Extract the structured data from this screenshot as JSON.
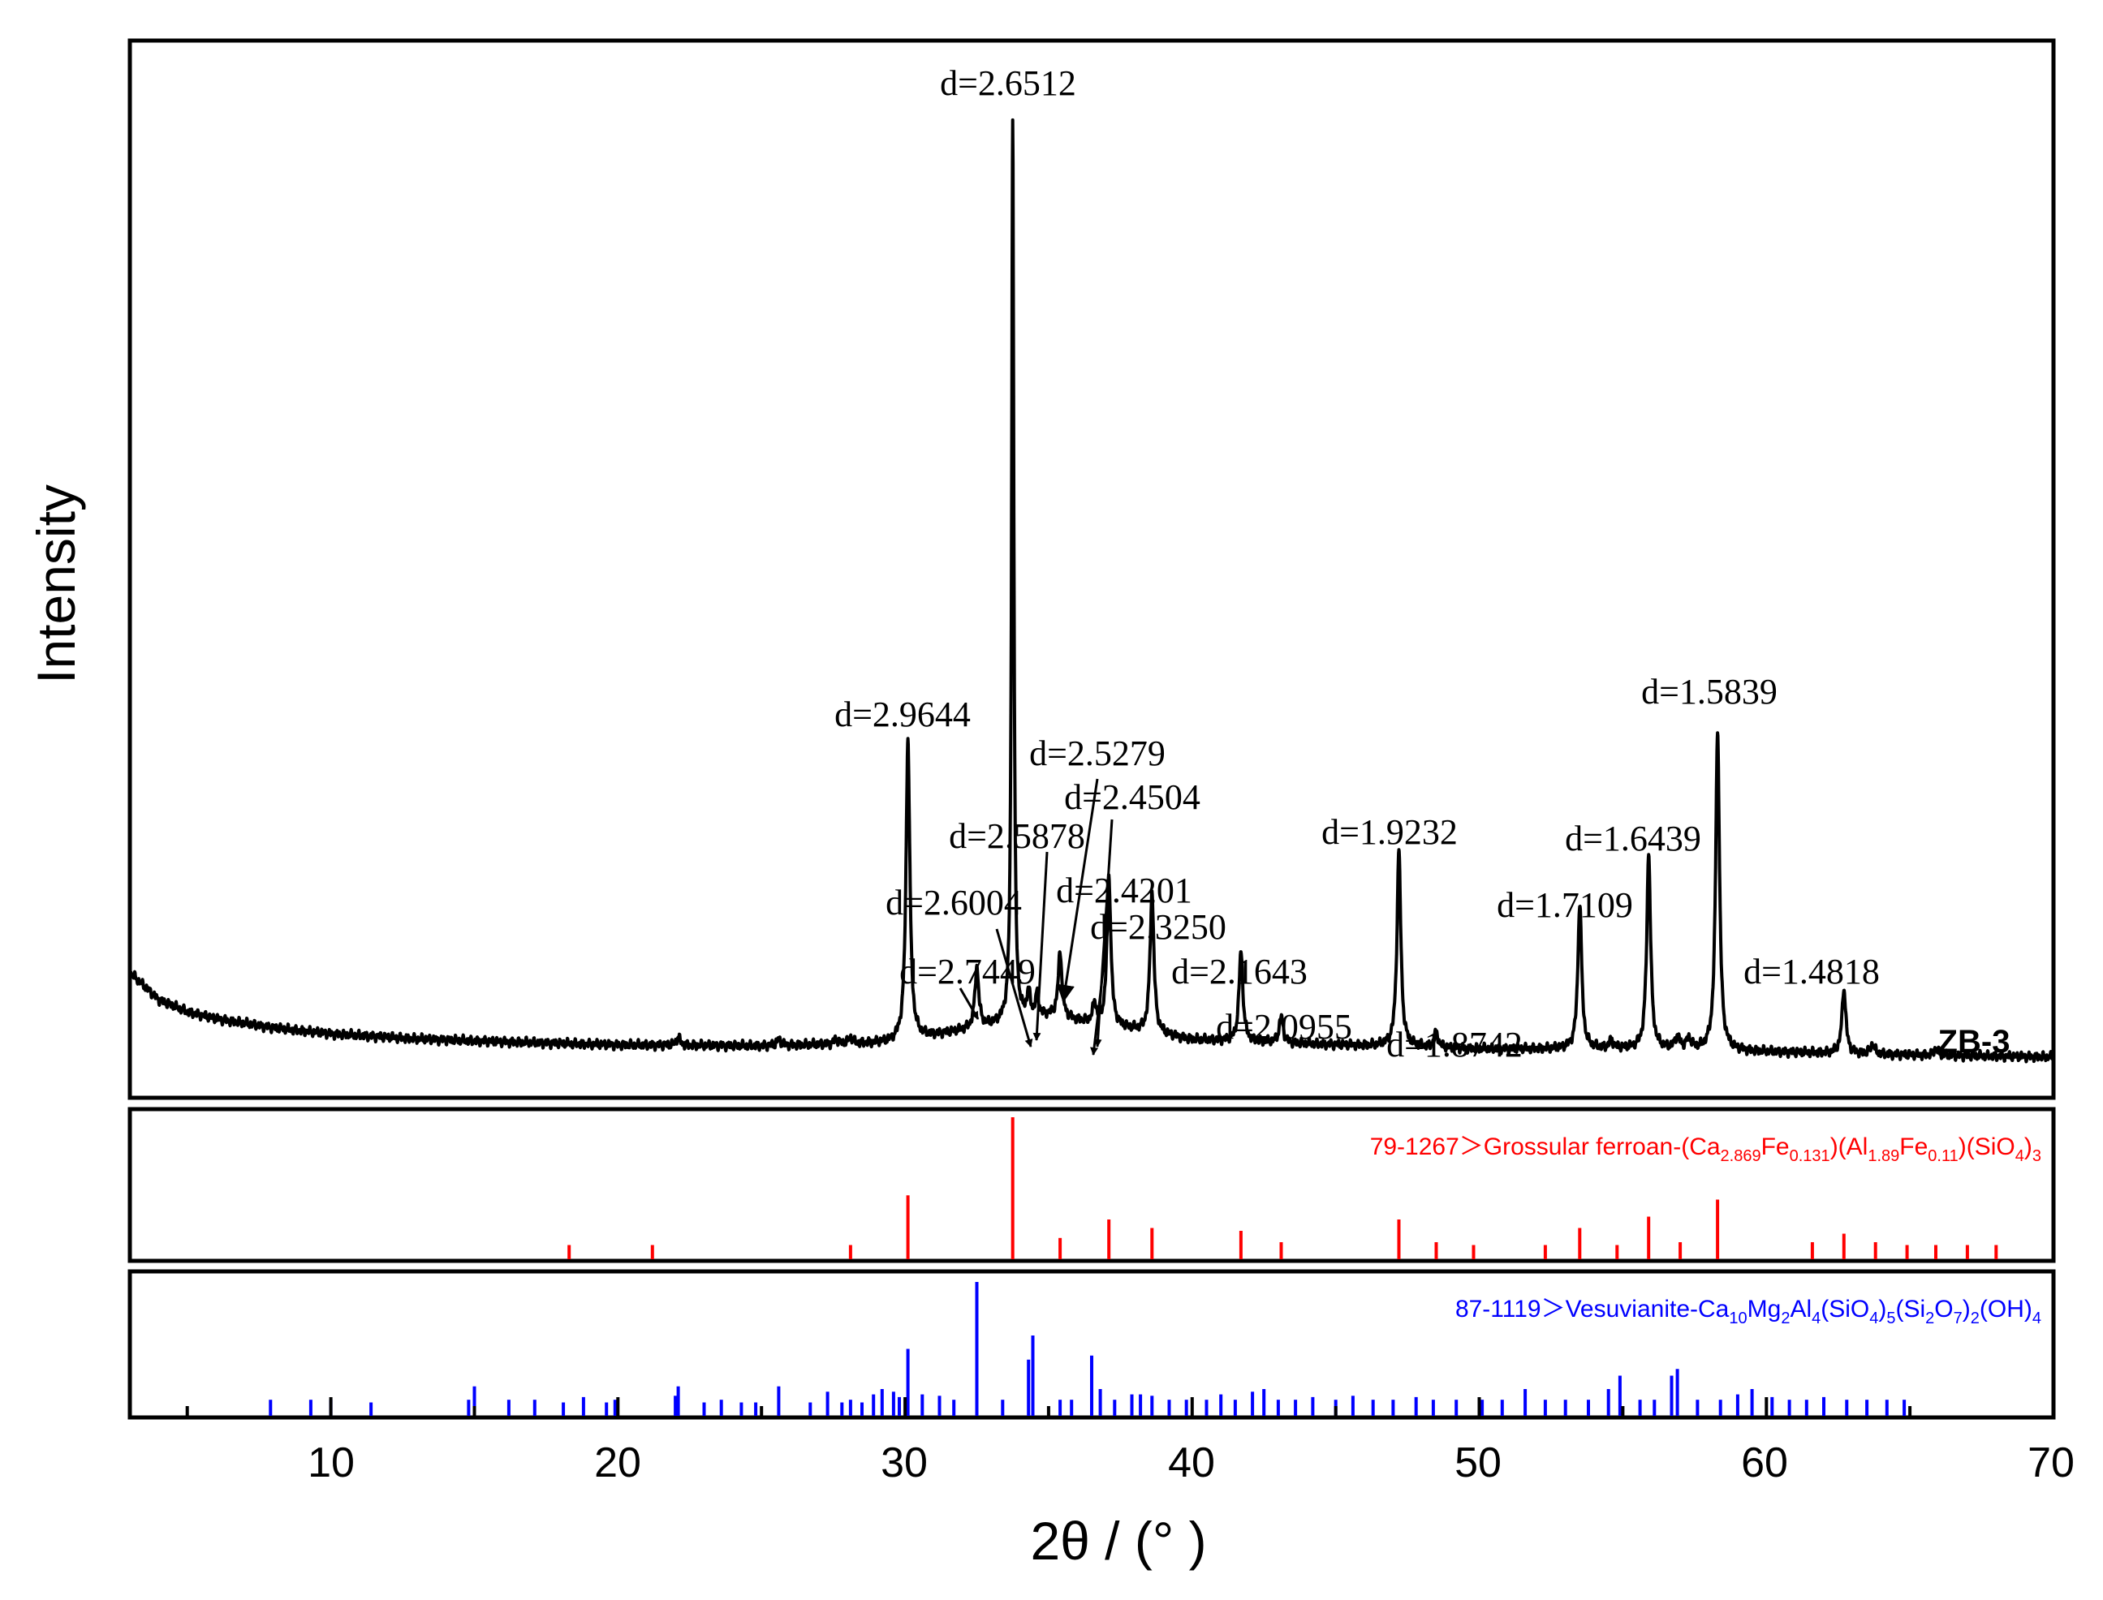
{
  "chart_data": {
    "type": "line",
    "title": "",
    "xlabel": "2θ / (° )",
    "ylabel": "Intensity",
    "xlim": [
      3,
      70
    ],
    "xticks": [
      10,
      20,
      30,
      40,
      50,
      60,
      70
    ],
    "sample_label": "ZB-3",
    "series": [
      {
        "name": "ZB-3",
        "color": "#000000",
        "baseline": [
          [
            3,
            10.2
          ],
          [
            4,
            7.5
          ],
          [
            5,
            6.3
          ],
          [
            6,
            5.6
          ],
          [
            8,
            4.7
          ],
          [
            10,
            4.1
          ],
          [
            13,
            3.6
          ],
          [
            16,
            3.3
          ],
          [
            20,
            3.0
          ],
          [
            25,
            2.9
          ],
          [
            29.5,
            3.2
          ],
          [
            35,
            5.8
          ],
          [
            40,
            3.5
          ],
          [
            45,
            3.0
          ],
          [
            50,
            2.6
          ],
          [
            55,
            2.6
          ],
          [
            60,
            2.3
          ],
          [
            65,
            2.0
          ],
          [
            70,
            1.8
          ]
        ],
        "peaks": [
          {
            "x": 22.1,
            "h": 0.8,
            "w": 0.08
          },
          {
            "x": 25.6,
            "h": 0.6,
            "w": 0.08
          },
          {
            "x": 27.6,
            "h": 0.5,
            "w": 0.08
          },
          {
            "x": 28.1,
            "h": 0.6,
            "w": 0.08
          },
          {
            "x": 30.1,
            "h": 30,
            "w": 0.08
          },
          {
            "x": 32.5,
            "h": 6,
            "w": 0.08
          },
          {
            "x": 33.75,
            "h": 90,
            "w": 0.045
          },
          {
            "x": 34.3,
            "h": 2.5,
            "w": 0.07
          },
          {
            "x": 34.6,
            "h": 2.2,
            "w": 0.07
          },
          {
            "x": 35.4,
            "h": 6.5,
            "w": 0.08
          },
          {
            "x": 36.6,
            "h": 2.0,
            "w": 0.07
          },
          {
            "x": 37.1,
            "h": 15,
            "w": 0.08
          },
          {
            "x": 38.6,
            "h": 14,
            "w": 0.08
          },
          {
            "x": 41.7,
            "h": 9,
            "w": 0.08
          },
          {
            "x": 43.1,
            "h": 2.6,
            "w": 0.08
          },
          {
            "x": 47.2,
            "h": 19.5,
            "w": 0.08
          },
          {
            "x": 48.5,
            "h": 1.5,
            "w": 0.08
          },
          {
            "x": 53.5,
            "h": 14.5,
            "w": 0.08
          },
          {
            "x": 54.6,
            "h": 0.8,
            "w": 0.08
          },
          {
            "x": 55.9,
            "h": 19.5,
            "w": 0.08
          },
          {
            "x": 56.9,
            "h": 1.2,
            "w": 0.1
          },
          {
            "x": 57.3,
            "h": 1.0,
            "w": 0.1
          },
          {
            "x": 58.3,
            "h": 32,
            "w": 0.08
          },
          {
            "x": 62.7,
            "h": 6.5,
            "w": 0.08
          },
          {
            "x": 63.7,
            "h": 1.0,
            "w": 0.08
          },
          {
            "x": 65.9,
            "h": 0.7,
            "w": 0.08
          }
        ]
      }
    ],
    "annotations": [
      {
        "text": "d=2.6512",
        "x": 33.75,
        "y": 99
      },
      {
        "text": "d=2.9644",
        "x": 30.1,
        "y": 37
      },
      {
        "text": "d=2.5279",
        "x": 35.4,
        "y": 33
      },
      {
        "text": "d=2.4504",
        "x": 37.0,
        "y": 28.5
      },
      {
        "text": "d=2.5878",
        "x": 34.6,
        "y": 24
      },
      {
        "text": "d=1.9232",
        "x": 47.2,
        "y": 24
      },
      {
        "text": "d=1.6439",
        "x": 55.9,
        "y": 23.5
      },
      {
        "text": "d=1.5839",
        "x": 58.3,
        "y": 38.5
      },
      {
        "text": "d=2.6004",
        "x": 32.0,
        "y": 16.5
      },
      {
        "text": "d=2.4201",
        "x": 37.0,
        "y": 18
      },
      {
        "text": "d=2.3250",
        "x": 37.2,
        "y": 14.8
      },
      {
        "text": "d=1.7109",
        "x": 53.5,
        "y": 16.5
      },
      {
        "text": "d=2.7449",
        "x": 32.0,
        "y": 10.5
      },
      {
        "text": "d=2.1643",
        "x": 42.1,
        "y": 10.5
      },
      {
        "text": "d=1.4818",
        "x": 63.0,
        "y": 10.5
      },
      {
        "text": "d=2.0955",
        "x": 42.8,
        "y": 4.8
      },
      {
        "text": "d=1.8742",
        "x": 49.7,
        "y": 3.3
      }
    ],
    "reference_patterns": [
      {
        "id": "79-1267",
        "name": "Grossular ferroan",
        "label_prefix": "79-1267＞Grossular ferroan-",
        "color": "#ff0000",
        "formula": [
          {
            "t": "(Ca"
          },
          {
            "t": "2.869",
            "sub": true
          },
          {
            "t": "Fe"
          },
          {
            "t": "0.131",
            "sub": true
          },
          {
            "t": ")(Al"
          },
          {
            "t": "1.89",
            "sub": true
          },
          {
            "t": "Fe"
          },
          {
            "t": "0.11",
            "sub": true
          },
          {
            "t": ")(SiO"
          },
          {
            "t": "4",
            "sub": true
          },
          {
            "t": ")"
          },
          {
            "t": "3",
            "sub": true
          }
        ],
        "peaks": [
          {
            "x": 18.3,
            "i": 10
          },
          {
            "x": 21.2,
            "i": 10
          },
          {
            "x": 28.1,
            "i": 10
          },
          {
            "x": 30.1,
            "i": 45
          },
          {
            "x": 33.75,
            "i": 100
          },
          {
            "x": 35.4,
            "i": 15
          },
          {
            "x": 37.1,
            "i": 28
          },
          {
            "x": 38.6,
            "i": 22
          },
          {
            "x": 41.7,
            "i": 20
          },
          {
            "x": 43.1,
            "i": 12
          },
          {
            "x": 47.2,
            "i": 28
          },
          {
            "x": 48.5,
            "i": 12
          },
          {
            "x": 49.8,
            "i": 10
          },
          {
            "x": 52.3,
            "i": 10
          },
          {
            "x": 53.5,
            "i": 22
          },
          {
            "x": 54.8,
            "i": 10
          },
          {
            "x": 55.9,
            "i": 30
          },
          {
            "x": 57.0,
            "i": 12
          },
          {
            "x": 58.3,
            "i": 42
          },
          {
            "x": 61.6,
            "i": 12
          },
          {
            "x": 62.7,
            "i": 18
          },
          {
            "x": 63.8,
            "i": 12
          },
          {
            "x": 64.9,
            "i": 10
          },
          {
            "x": 65.9,
            "i": 10
          },
          {
            "x": 67.0,
            "i": 10
          },
          {
            "x": 68.0,
            "i": 10
          }
        ]
      },
      {
        "id": "87-1119",
        "name": "Vesuvianite",
        "label_prefix": "87-1119＞Vesuvianite-",
        "color": "#0000ff",
        "formula": [
          {
            "t": "Ca"
          },
          {
            "t": "10",
            "sub": true
          },
          {
            "t": "Mg"
          },
          {
            "t": "2",
            "sub": true
          },
          {
            "t": "Al"
          },
          {
            "t": "4",
            "sub": true
          },
          {
            "t": "(SiO"
          },
          {
            "t": "4",
            "sub": true
          },
          {
            "t": ")"
          },
          {
            "t": "5",
            "sub": true
          },
          {
            "t": "(Si"
          },
          {
            "t": "2",
            "sub": true
          },
          {
            "t": "O"
          },
          {
            "t": "7",
            "sub": true
          },
          {
            "t": ")"
          },
          {
            "t": "2",
            "sub": true
          },
          {
            "t": "(OH)"
          },
          {
            "t": "4",
            "sub": true
          }
        ],
        "peaks": [
          {
            "x": 7.9,
            "i": 12
          },
          {
            "x": 9.3,
            "i": 12
          },
          {
            "x": 10.0,
            "i": 12
          },
          {
            "x": 11.4,
            "i": 10
          },
          {
            "x": 14.8,
            "i": 12
          },
          {
            "x": 15.0,
            "i": 22
          },
          {
            "x": 16.2,
            "i": 12
          },
          {
            "x": 17.1,
            "i": 12
          },
          {
            "x": 18.1,
            "i": 10
          },
          {
            "x": 18.8,
            "i": 14
          },
          {
            "x": 19.6,
            "i": 10
          },
          {
            "x": 19.9,
            "i": 12
          },
          {
            "x": 22.0,
            "i": 15
          },
          {
            "x": 22.1,
            "i": 22
          },
          {
            "x": 23.0,
            "i": 10
          },
          {
            "x": 23.6,
            "i": 12
          },
          {
            "x": 24.3,
            "i": 10
          },
          {
            "x": 24.8,
            "i": 10
          },
          {
            "x": 25.6,
            "i": 22
          },
          {
            "x": 26.7,
            "i": 10
          },
          {
            "x": 27.3,
            "i": 18
          },
          {
            "x": 27.8,
            "i": 10
          },
          {
            "x": 28.1,
            "i": 12
          },
          {
            "x": 28.5,
            "i": 10
          },
          {
            "x": 28.9,
            "i": 16
          },
          {
            "x": 29.2,
            "i": 20
          },
          {
            "x": 29.6,
            "i": 18
          },
          {
            "x": 29.8,
            "i": 14
          },
          {
            "x": 30.1,
            "i": 50
          },
          {
            "x": 30.6,
            "i": 16
          },
          {
            "x": 31.2,
            "i": 15
          },
          {
            "x": 31.7,
            "i": 12
          },
          {
            "x": 32.5,
            "i": 100
          },
          {
            "x": 33.4,
            "i": 12
          },
          {
            "x": 34.3,
            "i": 42
          },
          {
            "x": 34.45,
            "i": 60
          },
          {
            "x": 35.4,
            "i": 12
          },
          {
            "x": 35.8,
            "i": 12
          },
          {
            "x": 36.5,
            "i": 45
          },
          {
            "x": 36.8,
            "i": 20
          },
          {
            "x": 37.3,
            "i": 12
          },
          {
            "x": 37.9,
            "i": 16
          },
          {
            "x": 38.2,
            "i": 16
          },
          {
            "x": 38.6,
            "i": 15
          },
          {
            "x": 39.2,
            "i": 12
          },
          {
            "x": 39.8,
            "i": 12
          },
          {
            "x": 40.5,
            "i": 12
          },
          {
            "x": 41.0,
            "i": 16
          },
          {
            "x": 41.5,
            "i": 12
          },
          {
            "x": 42.1,
            "i": 18
          },
          {
            "x": 42.5,
            "i": 20
          },
          {
            "x": 43.0,
            "i": 12
          },
          {
            "x": 43.6,
            "i": 12
          },
          {
            "x": 44.2,
            "i": 14
          },
          {
            "x": 45.0,
            "i": 12
          },
          {
            "x": 45.6,
            "i": 15
          },
          {
            "x": 46.3,
            "i": 12
          },
          {
            "x": 47.0,
            "i": 12
          },
          {
            "x": 47.8,
            "i": 14
          },
          {
            "x": 48.4,
            "i": 12
          },
          {
            "x": 49.2,
            "i": 12
          },
          {
            "x": 50.1,
            "i": 12
          },
          {
            "x": 50.8,
            "i": 12
          },
          {
            "x": 51.6,
            "i": 20
          },
          {
            "x": 52.3,
            "i": 12
          },
          {
            "x": 53.0,
            "i": 12
          },
          {
            "x": 53.8,
            "i": 12
          },
          {
            "x": 54.5,
            "i": 20
          },
          {
            "x": 54.9,
            "i": 30
          },
          {
            "x": 55.6,
            "i": 12
          },
          {
            "x": 56.1,
            "i": 12
          },
          {
            "x": 56.7,
            "i": 30
          },
          {
            "x": 56.9,
            "i": 35
          },
          {
            "x": 57.6,
            "i": 12
          },
          {
            "x": 58.4,
            "i": 12
          },
          {
            "x": 59.0,
            "i": 16
          },
          {
            "x": 59.5,
            "i": 20
          },
          {
            "x": 60.2,
            "i": 14
          },
          {
            "x": 60.8,
            "i": 12
          },
          {
            "x": 61.4,
            "i": 12
          },
          {
            "x": 62.0,
            "i": 14
          },
          {
            "x": 62.8,
            "i": 12
          },
          {
            "x": 63.5,
            "i": 12
          },
          {
            "x": 64.2,
            "i": 12
          },
          {
            "x": 64.8,
            "i": 12
          }
        ]
      }
    ]
  }
}
